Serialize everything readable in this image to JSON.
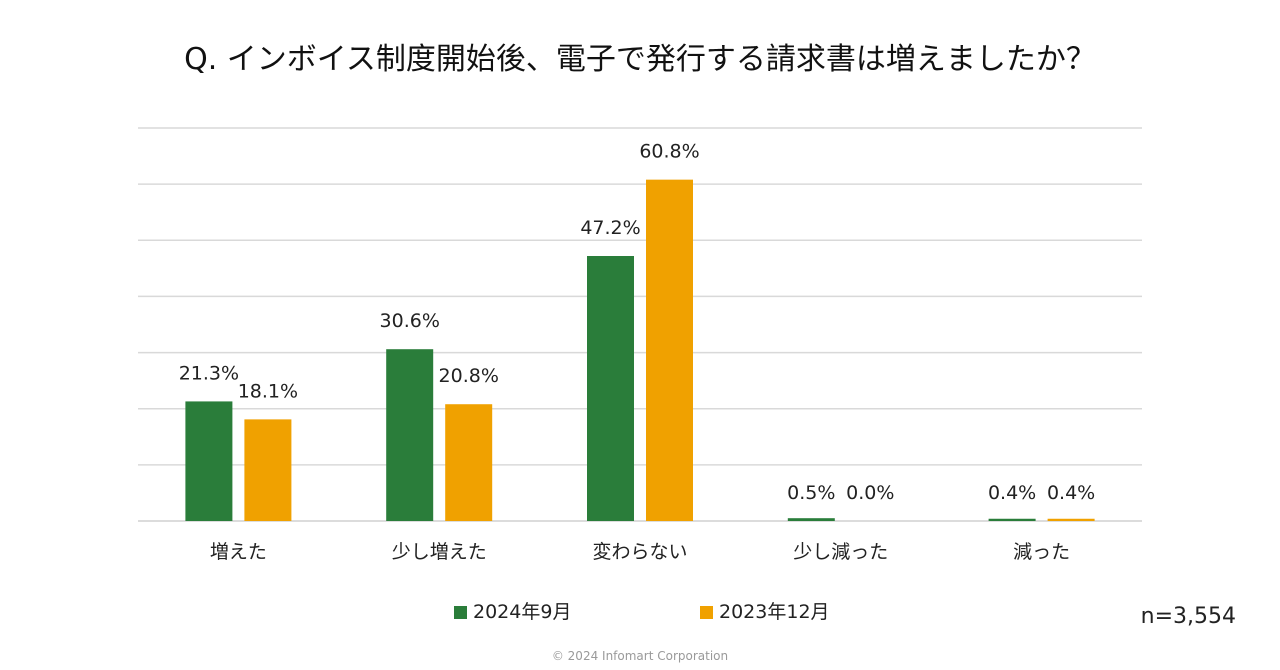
{
  "chart_data": {
    "type": "bar",
    "title": "Q. インボイス制度開始後、電子で発行する請求書は増えましたか？",
    "categories": [
      "増えた",
      "少し増えた",
      "変わらない",
      "少し減った",
      "減った"
    ],
    "series": [
      {
        "name": "2024年9月",
        "color": "#2a7d3a",
        "values": [
          21.3,
          30.6,
          47.2,
          0.5,
          0.4
        ],
        "labels": [
          "21.3%",
          "30.6%",
          "47.2%",
          "0.5%",
          "0.4%"
        ]
      },
      {
        "name": "2023年12月",
        "color": "#f0a100",
        "values": [
          18.1,
          20.8,
          60.8,
          0.0,
          0.4
        ],
        "labels": [
          "18.1%",
          "20.8%",
          "60.8%",
          "0.0%",
          "0.4%"
        ]
      }
    ],
    "ylim": [
      0,
      70
    ],
    "grid": true,
    "legend_position": "bottom",
    "xlabel": "",
    "ylabel": ""
  },
  "sample_size": "n=3,554",
  "copyright": "© 2024 Infomart Corporation"
}
